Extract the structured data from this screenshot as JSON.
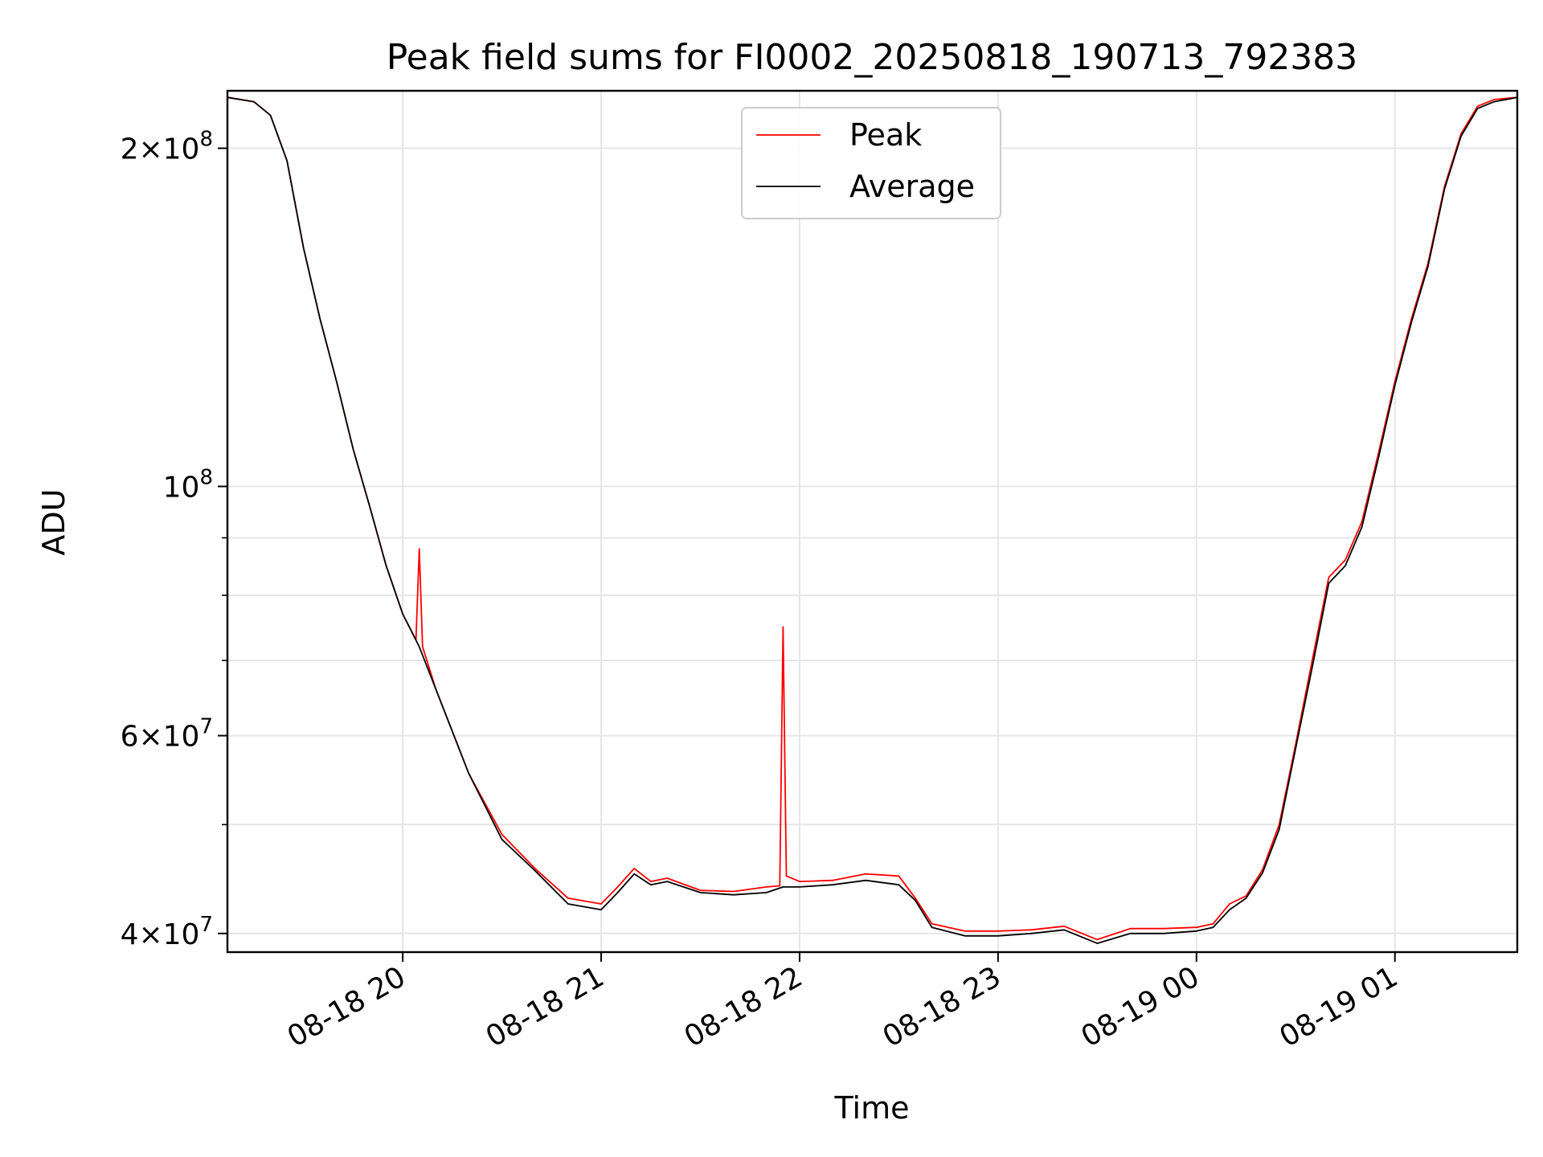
{
  "chart_data": {
    "type": "line",
    "title": "Peak field sums for FI0002_20250818_190713_792383",
    "xlabel": "Time",
    "ylabel": "ADU",
    "yscale": "log",
    "grid": true,
    "legend_position": "top-center",
    "xlim": [
      "2025-08-18 19:07",
      "2025-08-19 01:37"
    ],
    "ylim": [
      38500000,
      225000000
    ],
    "x_ticks": [
      {
        "t": "2025-08-18 20:00",
        "label": "08-18 20"
      },
      {
        "t": "2025-08-18 21:00",
        "label": "08-18 21"
      },
      {
        "t": "2025-08-18 22:00",
        "label": "08-18 22"
      },
      {
        "t": "2025-08-18 23:00",
        "label": "08-18 23"
      },
      {
        "t": "2025-08-19 00:00",
        "label": "08-19 00"
      },
      {
        "t": "2025-08-19 01:00",
        "label": "08-19 01"
      }
    ],
    "y_ticks": [
      {
        "v": 40000000,
        "mant": "4",
        "exp": "7"
      },
      {
        "v": 60000000,
        "mant": "6",
        "exp": "7"
      },
      {
        "v": 100000000,
        "mant": "",
        "exp": "8"
      },
      {
        "v": 200000000,
        "mant": "2",
        "exp": "8"
      }
    ],
    "y_minor_ticks": [
      50000000,
      70000000,
      80000000,
      90000000
    ],
    "series": [
      {
        "name": "Peak",
        "color": "#ff0000",
        "x": [
          "2025-08-18 19:07",
          "2025-08-18 19:15",
          "2025-08-18 19:20",
          "2025-08-18 19:25",
          "2025-08-18 19:30",
          "2025-08-18 19:35",
          "2025-08-18 19:40",
          "2025-08-18 19:45",
          "2025-08-18 19:50",
          "2025-08-18 19:55",
          "2025-08-18 20:00",
          "2025-08-18 20:04",
          "2025-08-18 20:05",
          "2025-08-18 20:06",
          "2025-08-18 20:10",
          "2025-08-18 20:20",
          "2025-08-18 20:30",
          "2025-08-18 20:40",
          "2025-08-18 20:50",
          "2025-08-18 21:00",
          "2025-08-18 21:05",
          "2025-08-18 21:10",
          "2025-08-18 21:15",
          "2025-08-18 21:20",
          "2025-08-18 21:30",
          "2025-08-18 21:40",
          "2025-08-18 21:50",
          "2025-08-18 21:54",
          "2025-08-18 21:55",
          "2025-08-18 21:56",
          "2025-08-18 22:00",
          "2025-08-18 22:10",
          "2025-08-18 22:20",
          "2025-08-18 22:30",
          "2025-08-18 22:35",
          "2025-08-18 22:40",
          "2025-08-18 22:50",
          "2025-08-18 23:00",
          "2025-08-18 23:10",
          "2025-08-18 23:20",
          "2025-08-18 23:30",
          "2025-08-18 23:40",
          "2025-08-18 23:50",
          "2025-08-19 00:00",
          "2025-08-19 00:05",
          "2025-08-19 00:10",
          "2025-08-19 00:15",
          "2025-08-19 00:20",
          "2025-08-19 00:25",
          "2025-08-19 00:30",
          "2025-08-19 00:35",
          "2025-08-19 00:40",
          "2025-08-19 00:45",
          "2025-08-19 00:50",
          "2025-08-19 00:55",
          "2025-08-19 01:00",
          "2025-08-19 01:05",
          "2025-08-19 01:10",
          "2025-08-19 01:15",
          "2025-08-19 01:20",
          "2025-08-19 01:25",
          "2025-08-19 01:30",
          "2025-08-19 01:37"
        ],
        "y": [
          222000000,
          220000000,
          214000000,
          195000000,
          163000000,
          141000000,
          124000000,
          108000000,
          96000000,
          85000000,
          77000000,
          73000000,
          88000000,
          72000000,
          66000000,
          55500000,
          49000000,
          45700000,
          43000000,
          42500000,
          44000000,
          45700000,
          44500000,
          44800000,
          43700000,
          43600000,
          44000000,
          44100000,
          75000000,
          45000000,
          44500000,
          44600000,
          45200000,
          45000000,
          43000000,
          40800000,
          40200000,
          40200000,
          40300000,
          40600000,
          39500000,
          40400000,
          40400000,
          40500000,
          40800000,
          42500000,
          43200000,
          45600000,
          50000000,
          59000000,
          70000000,
          83000000,
          86000000,
          93000000,
          107000000,
          124000000,
          141000000,
          158000000,
          185000000,
          206000000,
          218000000,
          221000000,
          222000000
        ]
      },
      {
        "name": "Average",
        "color": "#000000",
        "x": [
          "2025-08-18 19:07",
          "2025-08-18 19:15",
          "2025-08-18 19:20",
          "2025-08-18 19:25",
          "2025-08-18 19:30",
          "2025-08-18 19:35",
          "2025-08-18 19:40",
          "2025-08-18 19:45",
          "2025-08-18 19:50",
          "2025-08-18 19:55",
          "2025-08-18 20:00",
          "2025-08-18 20:05",
          "2025-08-18 20:10",
          "2025-08-18 20:20",
          "2025-08-18 20:30",
          "2025-08-18 20:40",
          "2025-08-18 20:50",
          "2025-08-18 21:00",
          "2025-08-18 21:05",
          "2025-08-18 21:10",
          "2025-08-18 21:15",
          "2025-08-18 21:20",
          "2025-08-18 21:30",
          "2025-08-18 21:40",
          "2025-08-18 21:50",
          "2025-08-18 21:55",
          "2025-08-18 22:00",
          "2025-08-18 22:10",
          "2025-08-18 22:20",
          "2025-08-18 22:30",
          "2025-08-18 22:35",
          "2025-08-18 22:40",
          "2025-08-18 22:50",
          "2025-08-18 23:00",
          "2025-08-18 23:10",
          "2025-08-18 23:20",
          "2025-08-18 23:30",
          "2025-08-18 23:40",
          "2025-08-18 23:50",
          "2025-08-19 00:00",
          "2025-08-19 00:05",
          "2025-08-19 00:10",
          "2025-08-19 00:15",
          "2025-08-19 00:20",
          "2025-08-19 00:25",
          "2025-08-19 00:30",
          "2025-08-19 00:35",
          "2025-08-19 00:40",
          "2025-08-19 00:45",
          "2025-08-19 00:50",
          "2025-08-19 00:55",
          "2025-08-19 01:00",
          "2025-08-19 01:05",
          "2025-08-19 01:10",
          "2025-08-19 01:15",
          "2025-08-19 01:20",
          "2025-08-19 01:25",
          "2025-08-19 01:30",
          "2025-08-19 01:37"
        ],
        "y": [
          222000000,
          220000000,
          214000000,
          195000000,
          163000000,
          141000000,
          124000000,
          108000000,
          96000000,
          85000000,
          77000000,
          72000000,
          66000000,
          55500000,
          48500000,
          45500000,
          42500000,
          42000000,
          43500000,
          45200000,
          44200000,
          44500000,
          43500000,
          43300000,
          43500000,
          44000000,
          44000000,
          44200000,
          44600000,
          44200000,
          42800000,
          40500000,
          39800000,
          39800000,
          40000000,
          40300000,
          39200000,
          40000000,
          40000000,
          40200000,
          40500000,
          42000000,
          43000000,
          45300000,
          49500000,
          58500000,
          69000000,
          82000000,
          85000000,
          92000000,
          106000000,
          123000000,
          140000000,
          157000000,
          184000000,
          205000000,
          217000000,
          220000000,
          222000000
        ]
      }
    ]
  }
}
